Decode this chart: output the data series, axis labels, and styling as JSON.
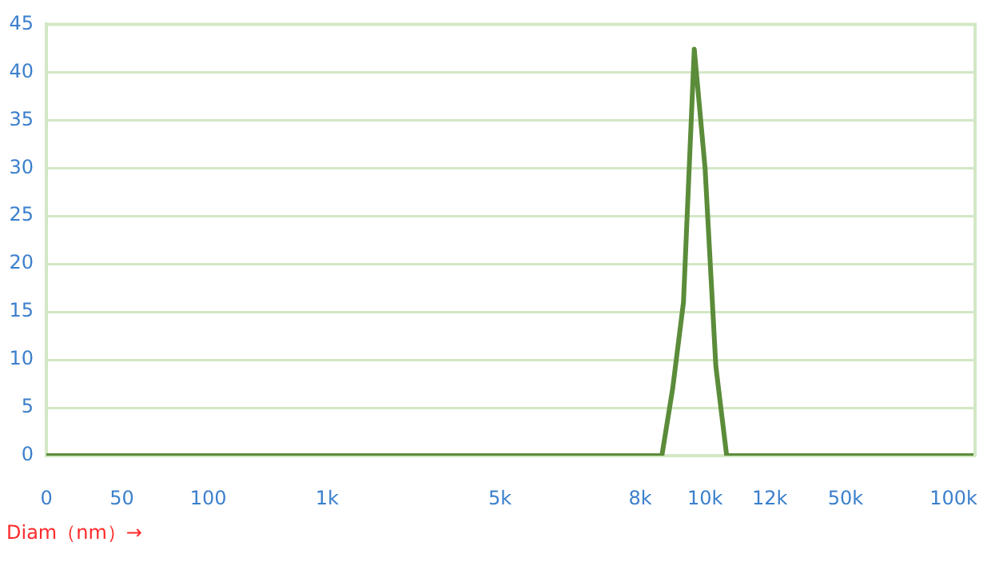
{
  "chart_data": {
    "type": "line",
    "xlabel": "Diam（nm）→",
    "categories": [
      "0",
      null,
      null,
      null,
      null,
      null,
      null,
      "50",
      null,
      null,
      null,
      null,
      null,
      null,
      null,
      "100",
      null,
      null,
      null,
      null,
      null,
      null,
      null,
      null,
      null,
      null,
      "1k",
      null,
      null,
      null,
      null,
      null,
      null,
      null,
      null,
      null,
      null,
      null,
      null,
      null,
      null,
      null,
      "5k",
      null,
      null,
      null,
      null,
      null,
      null,
      null,
      null,
      null,
      null,
      null,
      null,
      "8k",
      null,
      null,
      null,
      null,
      null,
      "10k",
      null,
      null,
      null,
      null,
      null,
      "12k",
      null,
      null,
      null,
      null,
      null,
      null,
      "50k",
      null,
      null,
      null,
      null,
      null,
      null,
      null,
      null,
      null,
      "100k",
      null,
      null
    ],
    "series": [
      {
        "color": "#5b8c3a",
        "values": [
          0,
          0,
          0,
          0,
          0,
          0,
          0,
          0,
          0,
          0,
          0,
          0,
          0,
          0,
          0,
          0,
          0,
          0,
          0,
          0,
          0,
          0,
          0,
          0,
          0,
          0,
          0,
          0,
          0,
          0,
          0,
          0,
          0,
          0,
          0,
          0,
          0,
          0,
          0,
          0,
          0,
          0,
          0,
          0,
          0,
          0,
          0,
          0,
          0,
          0,
          0,
          0,
          0,
          0,
          0,
          0,
          0,
          0,
          7,
          16,
          42.4,
          30,
          9.3,
          0,
          0,
          0,
          0,
          0,
          0,
          0,
          0,
          0,
          0,
          0,
          0,
          0,
          0,
          0,
          0,
          0,
          0,
          0,
          0,
          0,
          0,
          0,
          0
        ]
      }
    ],
    "ylim": [
      0,
      45
    ],
    "yticks": [
      0,
      5,
      10,
      15,
      20,
      25,
      30,
      35,
      40,
      45
    ],
    "grid": "y",
    "legend": false,
    "marker": "none",
    "line_style": "solid"
  }
}
